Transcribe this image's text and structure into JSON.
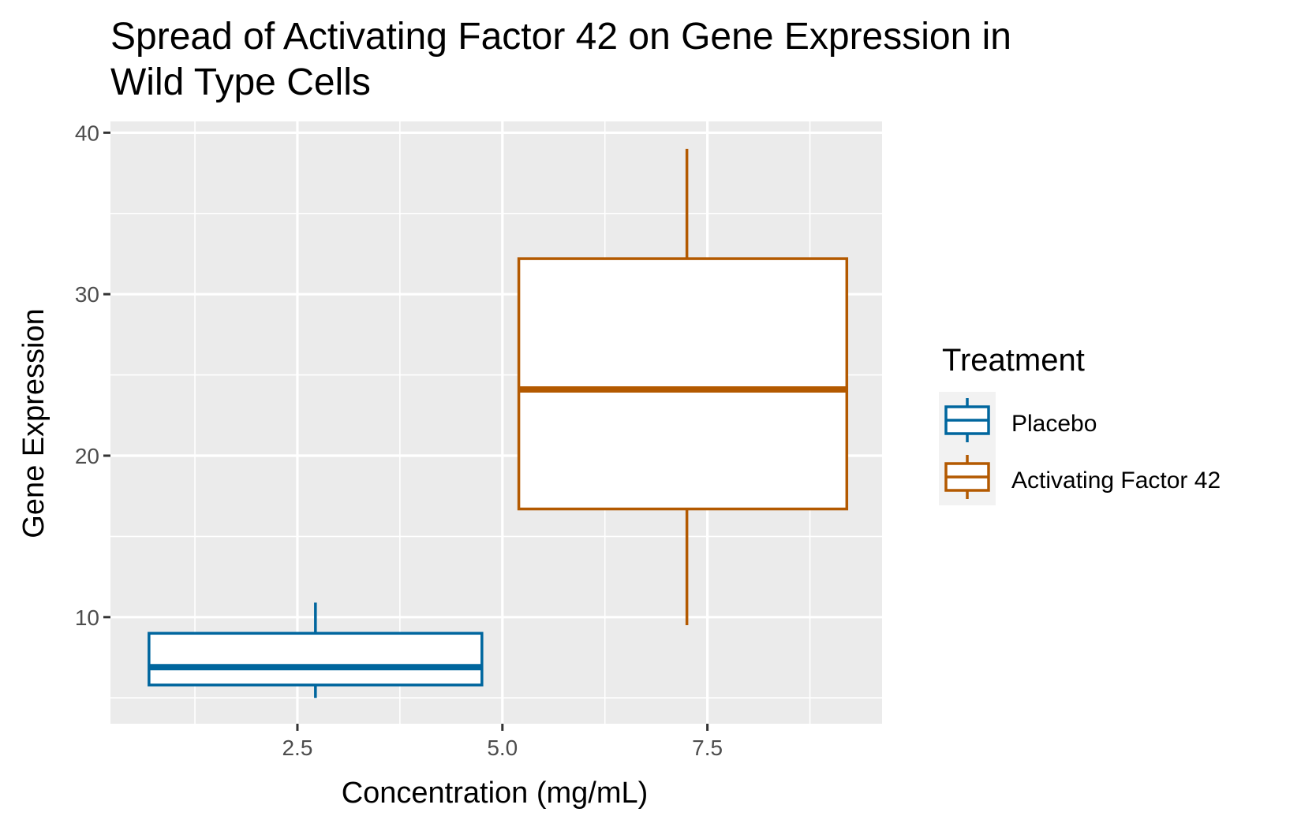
{
  "chart_data": {
    "type": "boxplot",
    "title": "Spread of Activating Factor 42 on Gene Expression in Wild Type Cells",
    "title_lines": [
      "Spread of Activating Factor 42 on Gene Expression in",
      "Wild Type Cells"
    ],
    "xlabel": "Concentration (mg/mL)",
    "ylabel": "Gene Expression",
    "xlim": [
      0.22,
      9.63
    ],
    "ylim": [
      3.4,
      40.7
    ],
    "x_ticks": [
      2.5,
      5.0,
      7.5
    ],
    "x_tick_labels": [
      "2.5",
      "5.0",
      "7.5"
    ],
    "x_minor_ticks": [
      1.25,
      3.75,
      6.25,
      8.75
    ],
    "y_ticks": [
      10,
      20,
      30,
      40
    ],
    "y_tick_labels": [
      "10",
      "20",
      "30",
      "40"
    ],
    "y_minor_ticks": [
      5,
      15,
      25,
      35
    ],
    "grid": true,
    "background": "#ebebeb",
    "legend": {
      "title": "Treatment",
      "position": "right",
      "entries": [
        "Placebo",
        "Activating Factor 42"
      ]
    },
    "series": [
      {
        "name": "Placebo",
        "color": "#00669e",
        "x_left": 0.69,
        "x_right": 4.75,
        "x_center": 2.72,
        "whisker_low": 5.0,
        "q1": 5.8,
        "median": 6.9,
        "q3": 9.0,
        "whisker_high": 10.9
      },
      {
        "name": "Activating Factor 42",
        "color": "#b35900",
        "x_left": 5.2,
        "x_right": 9.2,
        "x_center": 7.25,
        "whisker_low": 9.5,
        "q1": 16.7,
        "median": 24.1,
        "q3": 32.2,
        "whisker_high": 39.0
      }
    ]
  }
}
